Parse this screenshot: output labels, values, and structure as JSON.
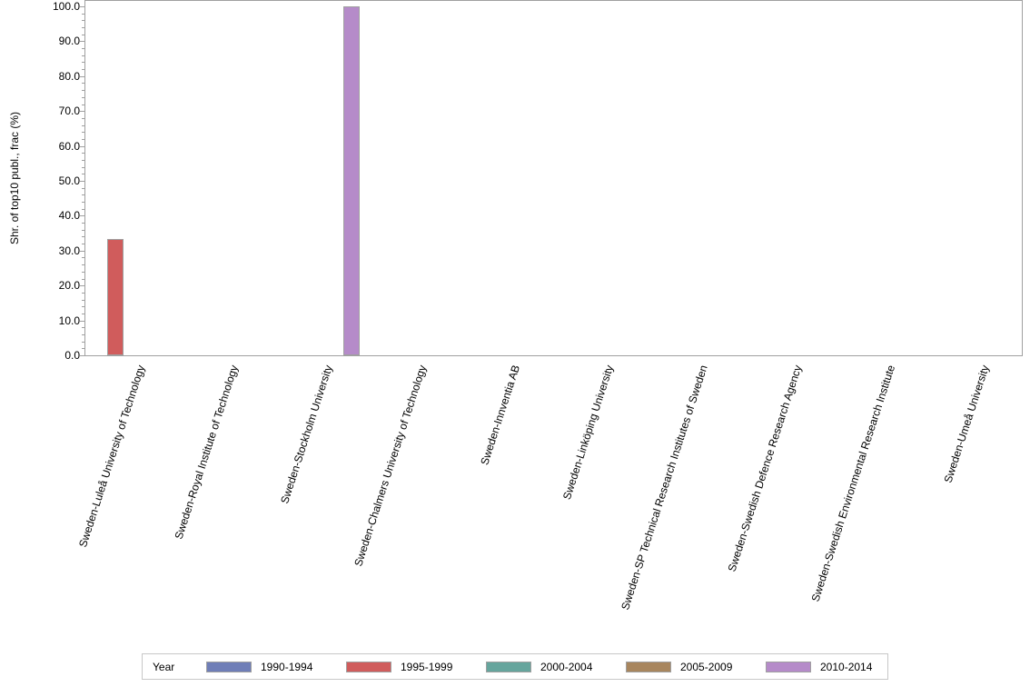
{
  "chart_data": {
    "type": "bar",
    "title": "",
    "xlabel": "",
    "ylabel": "Shr. of top10 publ., frac (%)",
    "ylim": [
      0,
      100
    ],
    "yticks": [
      "0.0",
      "10.0",
      "20.0",
      "30.0",
      "40.0",
      "50.0",
      "60.0",
      "70.0",
      "80.0",
      "90.0",
      "100.0"
    ],
    "categories": [
      "Sweden-Luleå University of Technology",
      "Sweden-Royal Institute of Technology",
      "Sweden-Stockholm University",
      "Sweden-Chalmers University of Technology",
      "Sweden-Innventia AB",
      "Sweden-Linköping University",
      "Sweden-SP Technical Research Institutes of Sweden",
      "Sweden-Swedish Defence Research Agency",
      "Sweden-Swedish Environmental Research Institute",
      "Sweden-Umeå University"
    ],
    "series": [
      {
        "name": "1990-1994",
        "color": "#6f7eb7",
        "values": [
          0,
          0,
          0,
          0,
          0,
          0,
          0,
          0,
          0,
          0
        ]
      },
      {
        "name": "1995-1999",
        "color": "#d05c5c",
        "values": [
          33.3,
          0,
          0,
          0,
          0,
          0,
          0,
          0,
          0,
          0
        ]
      },
      {
        "name": "2000-2004",
        "color": "#66a59d",
        "values": [
          0,
          0,
          0,
          0,
          0,
          0,
          0,
          0,
          0,
          0
        ]
      },
      {
        "name": "2005-2009",
        "color": "#a8865e",
        "values": [
          0,
          0,
          0,
          0,
          0,
          0,
          0,
          0,
          0,
          0
        ]
      },
      {
        "name": "2010-2014",
        "color": "#b58bc9",
        "values": [
          0,
          0,
          100,
          0,
          0,
          0,
          0,
          0,
          0,
          0
        ]
      }
    ],
    "legend": {
      "title": "Year",
      "position": "bottom"
    },
    "grid": false
  }
}
